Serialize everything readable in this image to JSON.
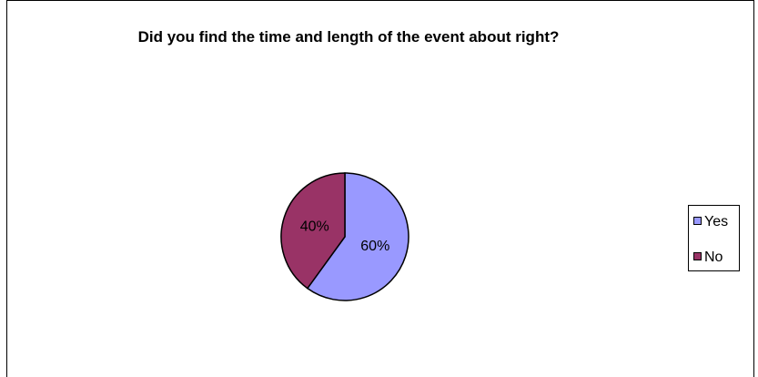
{
  "chart_data": {
    "type": "pie",
    "title": "Did you find the time and length of the event about right?",
    "categories": [
      "Yes",
      "No"
    ],
    "values": [
      60,
      40
    ],
    "value_labels": [
      "60%",
      "40%"
    ],
    "colors": [
      "#9999ff",
      "#993366"
    ],
    "legend": "right"
  }
}
